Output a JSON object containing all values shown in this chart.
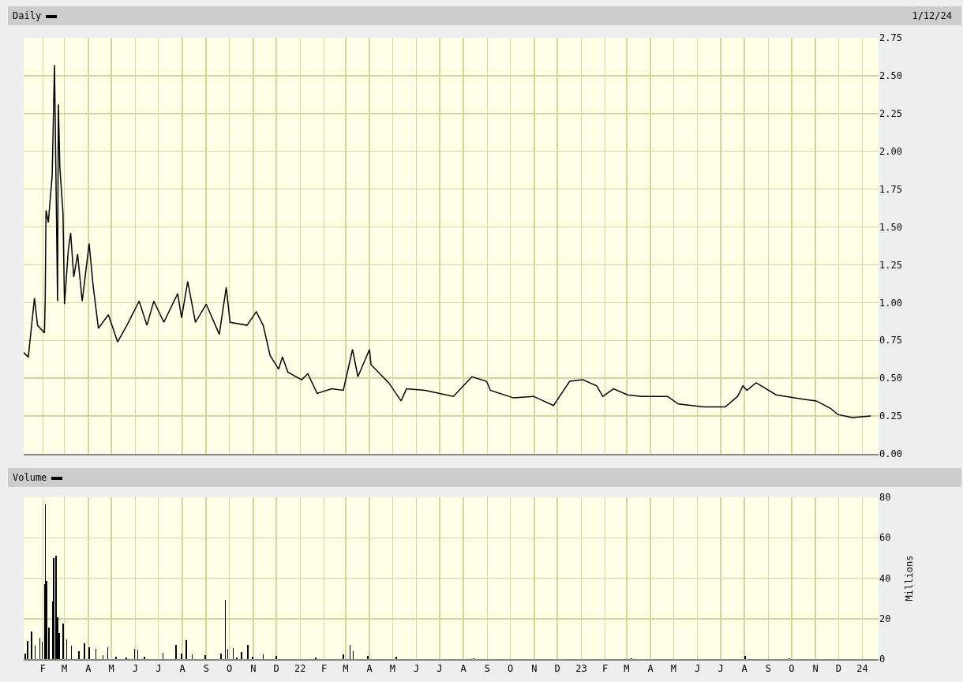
{
  "chart_data": [
    {
      "type": "line",
      "title": "Daily",
      "annotations": [
        "1/12/24"
      ],
      "color": "#000000",
      "grid": true,
      "tick_labels": "y",
      "line_style": "solid",
      "x": [
        "2021-01-07",
        "2021-01-13",
        "2021-01-21",
        "2021-01-25",
        "2021-02-03",
        "2021-02-04",
        "2021-02-05",
        "2021-02-08",
        "2021-02-13",
        "2021-02-16",
        "2021-02-20",
        "2021-02-21",
        "2021-02-23",
        "2021-02-27",
        "2021-03-01",
        "2021-03-06",
        "2021-03-09",
        "2021-03-13",
        "2021-03-18",
        "2021-03-24",
        "2021-04-02",
        "2021-04-07",
        "2021-04-14",
        "2021-04-27",
        "2021-05-09",
        "2021-05-21",
        "2021-06-06",
        "2021-06-16",
        "2021-06-25",
        "2021-07-08",
        "2021-07-26",
        "2021-07-31",
        "2021-08-08",
        "2021-08-18",
        "2021-09-01",
        "2021-09-18",
        "2021-09-27",
        "2021-10-02",
        "2021-10-24",
        "2021-11-05",
        "2021-11-14",
        "2021-11-23",
        "2021-12-04",
        "2021-12-09",
        "2021-12-16",
        "2022-01-03",
        "2022-01-11",
        "2022-01-23",
        "2022-02-11",
        "2022-02-26",
        "2022-03-10",
        "2022-03-17",
        "2022-04-01",
        "2022-04-03",
        "2022-04-26",
        "2022-05-12",
        "2022-05-19",
        "2022-06-12",
        "2022-07-19",
        "2022-08-12",
        "2022-08-31",
        "2022-09-05",
        "2022-10-05",
        "2022-10-31",
        "2022-11-26",
        "2022-12-17",
        "2023-01-03",
        "2023-01-21",
        "2023-01-29",
        "2023-02-12",
        "2023-03-02",
        "2023-03-21",
        "2023-04-23",
        "2023-05-07",
        "2023-06-09",
        "2023-07-07",
        "2023-07-23",
        "2023-07-30",
        "2023-08-04",
        "2023-08-16",
        "2023-09-11",
        "2023-10-05",
        "2023-11-02",
        "2023-11-21",
        "2023-11-30",
        "2023-12-19",
        "2024-01-12"
      ],
      "values": [
        0.67,
        0.64,
        1.03,
        0.85,
        0.8,
        1.03,
        1.61,
        1.53,
        1.84,
        2.57,
        1.01,
        2.31,
        1.89,
        1.6,
        0.99,
        1.35,
        1.46,
        1.17,
        1.32,
        1.01,
        1.39,
        1.12,
        0.83,
        0.92,
        0.74,
        0.85,
        1.01,
        0.85,
        1.01,
        0.87,
        1.06,
        0.9,
        1.14,
        0.87,
        0.99,
        0.79,
        1.1,
        0.87,
        0.85,
        0.94,
        0.85,
        0.65,
        0.56,
        0.64,
        0.54,
        0.49,
        0.53,
        0.4,
        0.43,
        0.42,
        0.69,
        0.51,
        0.69,
        0.59,
        0.47,
        0.35,
        0.43,
        0.42,
        0.38,
        0.51,
        0.48,
        0.42,
        0.37,
        0.38,
        0.32,
        0.48,
        0.49,
        0.45,
        0.38,
        0.43,
        0.39,
        0.38,
        0.38,
        0.33,
        0.31,
        0.31,
        0.38,
        0.45,
        0.42,
        0.47,
        0.39,
        0.37,
        0.35,
        0.3,
        0.26,
        0.24,
        0.25
      ],
      "xlim": [
        "2021-01-07",
        "2024-01-22"
      ],
      "ylim": [
        0,
        2.75
      ],
      "yticks": [
        {
          "value": 0,
          "label": "0.00"
        },
        {
          "value": 0.25,
          "label": "0.25"
        },
        {
          "value": 0.5,
          "label": "0.50"
        },
        {
          "value": 0.75,
          "label": "0.75"
        },
        {
          "value": 1,
          "label": "1.00"
        },
        {
          "value": 1.25,
          "label": "1.25"
        },
        {
          "value": 1.5,
          "label": "1.50"
        },
        {
          "value": 1.75,
          "label": "1.75"
        },
        {
          "value": 2,
          "label": "2.00"
        },
        {
          "value": 2.25,
          "label": "2.25"
        },
        {
          "value": 2.5,
          "label": "2.50"
        },
        {
          "value": 2.75,
          "label": "2.75"
        }
      ]
    },
    {
      "type": "bar",
      "title": "Volume",
      "ylabel": "Millions",
      "color": "#000000",
      "grid": true,
      "x": [
        "2021-01-09",
        "2021-01-12",
        "2021-01-17",
        "2021-01-22",
        "2021-01-28",
        "2021-01-31",
        "2021-02-03",
        "2021-02-04",
        "2021-02-06",
        "2021-02-09",
        "2021-02-14",
        "2021-02-15",
        "2021-02-18",
        "2021-02-20",
        "2021-02-22",
        "2021-02-27",
        "2021-03-04",
        "2021-03-10",
        "2021-03-20",
        "2021-03-27",
        "2021-04-02",
        "2021-04-11",
        "2021-04-20",
        "2021-04-26",
        "2021-05-07",
        "2021-05-20",
        "2021-05-31",
        "2021-06-04",
        "2021-06-13",
        "2021-07-07",
        "2021-07-24",
        "2021-07-31",
        "2021-08-06",
        "2021-08-14",
        "2021-08-31",
        "2021-09-20",
        "2021-09-26",
        "2021-09-29",
        "2021-10-06",
        "2021-10-11",
        "2021-10-17",
        "2021-10-25",
        "2021-10-31",
        "2021-11-14",
        "2021-12-01",
        "2022-01-21",
        "2022-02-26",
        "2022-03-07",
        "2022-03-11",
        "2022-03-30",
        "2022-05-06",
        "2022-08-14",
        "2023-03-07",
        "2023-08-02",
        "2023-09-28"
      ],
      "values": [
        2.6,
        9.1,
        13.6,
        6.5,
        10.4,
        8.4,
        36.9,
        76.3,
        38.8,
        15.5,
        28.5,
        49.8,
        51.1,
        20.7,
        12.9,
        17.5,
        9.7,
        6.5,
        3.9,
        7.8,
        5.8,
        5.2,
        1.9,
        5.8,
        1.3,
        0.6,
        4.9,
        4.5,
        1.3,
        3.2,
        6.9,
        2.6,
        9.4,
        2.3,
        1.9,
        2.8,
        29.1,
        4.9,
        5.6,
        0.6,
        3.6,
        6.9,
        1.3,
        2.2,
        1.6,
        0.9,
        2.3,
        6.9,
        3.9,
        1.6,
        1.0,
        0.5,
        0.5,
        1.5,
        0.5
      ],
      "xlim": [
        "2021-01-07",
        "2024-01-22"
      ],
      "xticks": [
        {
          "value": "2021-02-01",
          "label": "F"
        },
        {
          "value": "2021-03-01",
          "label": "M"
        },
        {
          "value": "2021-04-01",
          "label": "A"
        },
        {
          "value": "2021-05-01",
          "label": "M"
        },
        {
          "value": "2021-06-01",
          "label": "J"
        },
        {
          "value": "2021-07-01",
          "label": "J"
        },
        {
          "value": "2021-08-01",
          "label": "A"
        },
        {
          "value": "2021-09-01",
          "label": "S"
        },
        {
          "value": "2021-10-01",
          "label": "O"
        },
        {
          "value": "2021-11-01",
          "label": "N"
        },
        {
          "value": "2021-12-01",
          "label": "D"
        },
        {
          "value": "2022-01-01",
          "label": "22"
        },
        {
          "value": "2022-02-01",
          "label": "F"
        },
        {
          "value": "2022-03-01",
          "label": "M"
        },
        {
          "value": "2022-04-01",
          "label": "A"
        },
        {
          "value": "2022-05-01",
          "label": "M"
        },
        {
          "value": "2022-06-01",
          "label": "J"
        },
        {
          "value": "2022-07-01",
          "label": "J"
        },
        {
          "value": "2022-08-01",
          "label": "A"
        },
        {
          "value": "2022-09-01",
          "label": "S"
        },
        {
          "value": "2022-10-01",
          "label": "O"
        },
        {
          "value": "2022-11-01",
          "label": "N"
        },
        {
          "value": "2022-12-01",
          "label": "D"
        },
        {
          "value": "2023-01-01",
          "label": "23"
        },
        {
          "value": "2023-02-01",
          "label": "F"
        },
        {
          "value": "2023-03-01",
          "label": "M"
        },
        {
          "value": "2023-04-01",
          "label": "A"
        },
        {
          "value": "2023-05-01",
          "label": "M"
        },
        {
          "value": "2023-06-01",
          "label": "J"
        },
        {
          "value": "2023-07-01",
          "label": "J"
        },
        {
          "value": "2023-08-01",
          "label": "A"
        },
        {
          "value": "2023-09-01",
          "label": "S"
        },
        {
          "value": "2023-10-01",
          "label": "O"
        },
        {
          "value": "2023-11-01",
          "label": "N"
        },
        {
          "value": "2023-12-01",
          "label": "D"
        },
        {
          "value": "2024-01-01",
          "label": "24"
        }
      ],
      "ylim": [
        0,
        80
      ],
      "yticks": [
        0,
        20,
        40,
        60,
        80
      ]
    }
  ]
}
